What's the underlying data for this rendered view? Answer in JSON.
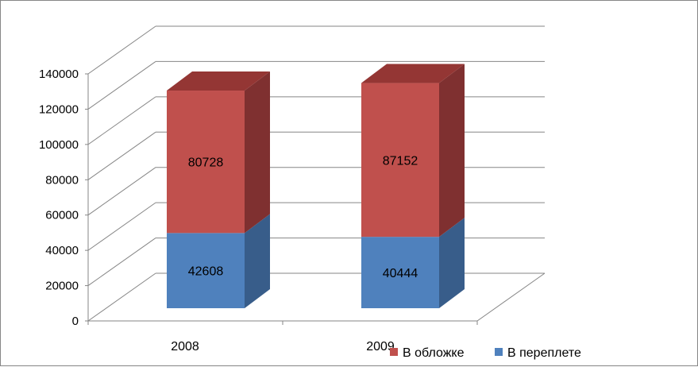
{
  "chart_data": {
    "type": "bar",
    "stacked": true,
    "three_d": true,
    "categories": [
      "2008",
      "2009"
    ],
    "series": [
      {
        "name": "В переплете",
        "values": [
          42608,
          40444
        ],
        "color": "#4F81BD",
        "side_color": "#385D8A",
        "top_color": "#3F6797"
      },
      {
        "name": "В обложке",
        "values": [
          80728,
          87152
        ],
        "color": "#C0504D",
        "side_color": "#7F3030",
        "top_color": "#943634"
      }
    ],
    "ylim": [
      0,
      140000
    ],
    "yticks": [
      0,
      20000,
      40000,
      60000,
      80000,
      100000,
      120000,
      140000
    ],
    "grid": true,
    "legend_position": "bottom-right",
    "legend_order": [
      "В обложке",
      "В переплете"
    ]
  }
}
